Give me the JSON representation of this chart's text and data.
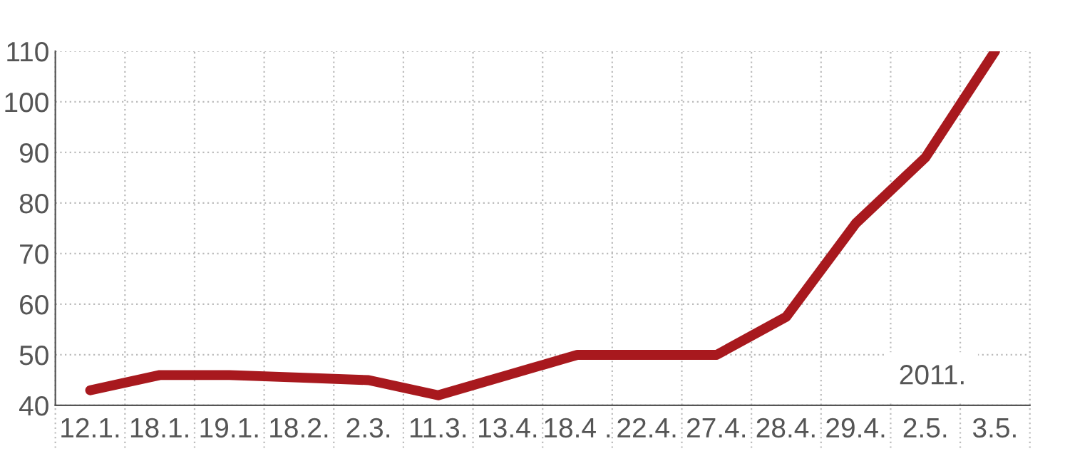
{
  "chart_data": {
    "type": "line",
    "categories": [
      "12.1.",
      "18.1.",
      "19.1.",
      "18.2.",
      "2.3.",
      "11.3.",
      "13.4.",
      "18.4 .",
      "22.4.",
      "27.4.",
      "28.4.",
      "29.4.",
      "2.5.",
      "3.5."
    ],
    "series": [
      {
        "color": "#a8191e",
        "values": [
          43,
          46,
          46,
          45.5,
          45,
          42,
          46,
          50,
          50,
          50,
          57.5,
          76,
          89,
          110
        ]
      }
    ],
    "ylim": [
      40,
      110
    ],
    "yticks": [
      40,
      50,
      60,
      70,
      80,
      90,
      100,
      110
    ],
    "grid": true,
    "marker": "none",
    "line_style": "solid",
    "annotations": [
      "2011."
    ]
  }
}
